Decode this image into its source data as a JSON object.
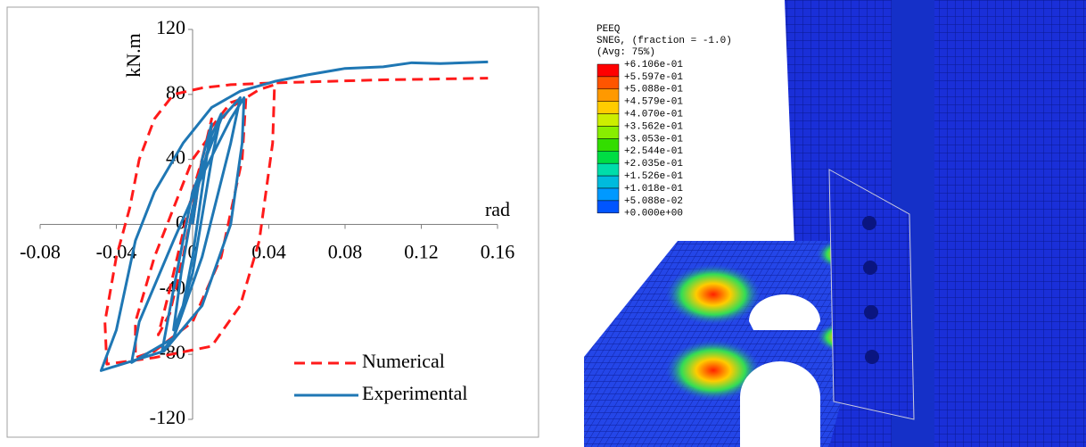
{
  "chart_data": {
    "type": "line",
    "x_label": "rad",
    "y_label": "kN.m",
    "xlim": [
      -0.08,
      0.16
    ],
    "xticks": [
      -0.08,
      -0.04,
      0,
      0.04,
      0.08,
      0.12,
      0.16
    ],
    "ylim": [
      -120,
      120
    ],
    "yticks": [
      -120,
      -80,
      -40,
      0,
      40,
      80,
      120
    ],
    "grid": false,
    "legend": "lower right",
    "series": [
      {
        "name": "Numerical",
        "color": "#ff1a1a",
        "dash": true,
        "x": [
          0,
          0.005,
          0.01,
          0.005,
          -0.005,
          -0.012,
          -0.018,
          -0.012,
          0,
          0.01,
          0.02,
          0.028,
          0.026,
          0.015,
          0,
          -0.02,
          -0.03,
          -0.03,
          -0.02,
          0,
          0.02,
          0.035,
          0.043,
          0.042,
          0.035,
          0.025,
          0.01,
          -0.02,
          -0.045,
          -0.046,
          -0.04,
          -0.033,
          -0.028,
          -0.02,
          -0.01,
          0.005,
          0.02,
          0.04,
          0.07,
          0.1,
          0.13,
          0.155
        ],
        "values": [
          0,
          40,
          65,
          40,
          -20,
          -55,
          -68,
          -40,
          20,
          60,
          75,
          78,
          40,
          -20,
          -60,
          -78,
          -82,
          -60,
          -20,
          40,
          72,
          83,
          86,
          50,
          -10,
          -50,
          -75,
          -82,
          -86,
          -60,
          -20,
          10,
          40,
          65,
          80,
          84,
          86,
          87,
          88,
          89,
          89.5,
          90
        ]
      },
      {
        "name": "Experimental",
        "color": "#1f77b4",
        "dash": false,
        "x": [
          0,
          0.005,
          0.01,
          0.006,
          0,
          -0.005,
          -0.01,
          -0.006,
          0,
          0.01,
          0.015,
          0.01,
          0,
          -0.01,
          -0.016,
          -0.01,
          0,
          0.015,
          0.025,
          0.02,
          0.005,
          -0.01,
          -0.032,
          -0.028,
          -0.01,
          0.005,
          0.02,
          0.027,
          0.026,
          0.02,
          0.005,
          -0.015,
          -0.048,
          -0.04,
          -0.03,
          -0.02,
          -0.005,
          0.01,
          0.025,
          0.043,
          0.06,
          0.08,
          0.1,
          0.115,
          0.13,
          0.155
        ],
        "values": [
          0,
          40,
          62,
          30,
          -20,
          -50,
          -65,
          -30,
          10,
          55,
          68,
          40,
          -30,
          -70,
          -78,
          -40,
          20,
          65,
          78,
          50,
          -20,
          -70,
          -85,
          -60,
          -10,
          30,
          65,
          78,
          50,
          0,
          -50,
          -78,
          -90,
          -65,
          -10,
          20,
          50,
          72,
          82,
          88,
          92,
          96,
          97,
          99.5,
          99,
          100
        ]
      }
    ]
  },
  "contour_legend": {
    "variable": "PEEQ",
    "section": "SNEG, (fraction = -1.0)",
    "averaging": "(Avg: 75%)",
    "levels": [
      "+6.106e-01",
      "+5.597e-01",
      "+5.088e-01",
      "+4.579e-01",
      "+4.070e-01",
      "+3.562e-01",
      "+3.053e-01",
      "+2.544e-01",
      "+2.035e-01",
      "+1.526e-01",
      "+1.018e-01",
      "+5.088e-02",
      "+0.000e+00"
    ],
    "colors": [
      "#ff0000",
      "#ff5500",
      "#ff9900",
      "#ffcc00",
      "#ccee00",
      "#88ee00",
      "#33dd00",
      "#00dd44",
      "#00ddaa",
      "#00bbdd",
      "#0099ff",
      "#0055ff",
      "#0000ee"
    ]
  }
}
